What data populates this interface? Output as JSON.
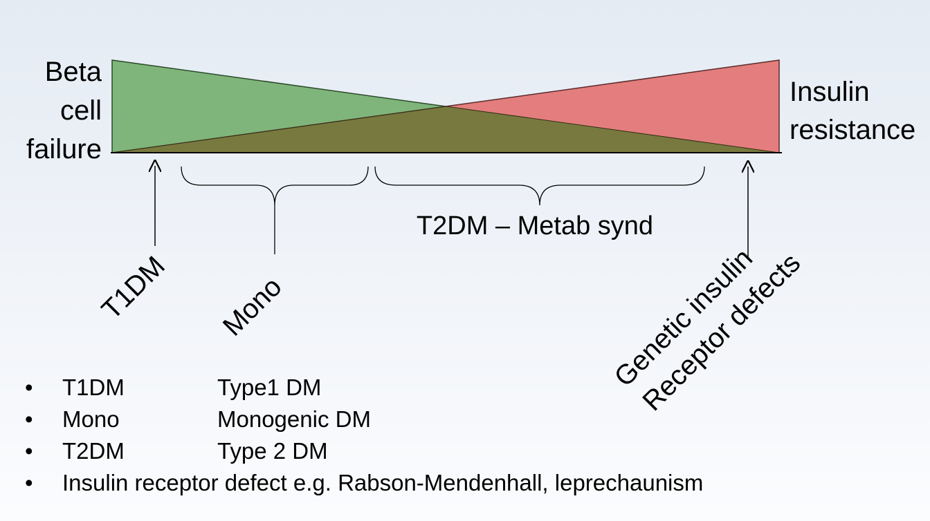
{
  "left_label_lines": [
    "Beta",
    "cell",
    "failure"
  ],
  "right_label_lines": [
    "Insulin",
    "resistance"
  ],
  "colors": {
    "beta_cell_failure": "#7fb57a",
    "insulin_resistance": "#e47d7d",
    "overlap": "#78793f"
  },
  "brace_label": "T2DM – Metab synd",
  "pointer_labels": {
    "t1dm": "T1DM",
    "mono": "Mono",
    "genetic_line1": "Genetic insulin",
    "genetic_line2": "Receptor defects"
  },
  "legend": [
    {
      "abbr": "T1DM",
      "full": "Type1 DM"
    },
    {
      "abbr": "Mono",
      "full": "Monogenic DM"
    },
    {
      "abbr": "T2DM",
      "full": "Type 2 DM"
    }
  ],
  "legend_last": "Insulin receptor defect e.g. Rabson-Mendenhall, leprechaunism",
  "bullet": "•"
}
